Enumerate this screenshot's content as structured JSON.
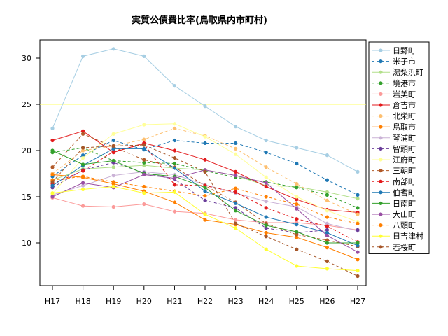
{
  "chart_data": {
    "type": "line",
    "title": "実質公債費比率(鳥取県内市町村)",
    "xlabel": "",
    "ylabel": "",
    "categories": [
      "H17",
      "H18",
      "H19",
      "H20",
      "H21",
      "H22",
      "H23",
      "H24",
      "H25",
      "H26",
      "H27"
    ],
    "ylim": [
      8.0,
      32.0
    ],
    "yticks": [
      10,
      15,
      20,
      25,
      30
    ],
    "reference_line": {
      "value": 25,
      "color": "#ffff66"
    },
    "legend_position": "right",
    "series": [
      {
        "name": "日野町",
        "color": "#a6cee3",
        "dash": false,
        "values": [
          22.4,
          30.2,
          31.0,
          30.2,
          27.0,
          24.8,
          22.6,
          21.1,
          20.3,
          19.5,
          17.7
        ]
      },
      {
        "name": "米子市",
        "color": "#1f78b4",
        "dash": true,
        "values": [
          17.2,
          19.5,
          21.1,
          20.1,
          21.1,
          20.8,
          20.8,
          19.8,
          18.6,
          16.8,
          15.2
        ]
      },
      {
        "name": "湯梨浜町",
        "color": "#b2df8a",
        "dash": false,
        "values": [
          16.8,
          18.0,
          18.2,
          18.4,
          18.1,
          17.9,
          17.3,
          16.2,
          16.1,
          15.5,
          14.8
        ]
      },
      {
        "name": "境港市",
        "color": "#33a02c",
        "dash": true,
        "values": [
          19.8,
          20.3,
          18.9,
          18.7,
          18.6,
          17.8,
          17.1,
          16.6,
          16.0,
          15.2,
          13.8
        ]
      },
      {
        "name": "岩美町",
        "color": "#fb9a99",
        "dash": false,
        "values": [
          14.9,
          14.0,
          13.9,
          14.2,
          13.4,
          13.2,
          12.5,
          12.2,
          12.2,
          11.9,
          11.4
        ]
      },
      {
        "name": "倉吉市",
        "color": "#e31a1c",
        "dash": false,
        "values": [
          21.1,
          22.1,
          19.8,
          20.8,
          20.0,
          19.0,
          17.7,
          16.1,
          14.7,
          13.6,
          13.3
        ]
      },
      {
        "name": "北栄町",
        "color": "#fdbf6f",
        "dash": true,
        "values": [
          17.5,
          20.0,
          20.5,
          21.2,
          22.4,
          21.6,
          20.2,
          18.2,
          16.4,
          14.6,
          13.1
        ]
      },
      {
        "name": "鳥取市",
        "color": "#ff7f00",
        "dash": false,
        "values": [
          17.4,
          17.1,
          16.4,
          15.6,
          14.4,
          12.5,
          12.0,
          11.1,
          10.6,
          9.5,
          8.2
        ]
      },
      {
        "name": "琴浦町",
        "color": "#cab2d6",
        "dash": false,
        "values": [
          15.2,
          16.2,
          17.3,
          17.7,
          17.4,
          16.3,
          15.4,
          14.5,
          13.9,
          12.1,
          11.3
        ]
      },
      {
        "name": "智頭町",
        "color": "#6a3d9a",
        "dash": true,
        "values": [
          16.0,
          17.9,
          18.7,
          17.6,
          16.9,
          14.6,
          13.8,
          11.6,
          11.1,
          11.4,
          11.4
        ]
      },
      {
        "name": "江府町",
        "color": "#ffff99",
        "dash": false,
        "values": [
          15.3,
          19.2,
          21.8,
          22.8,
          22.9,
          21.5,
          19.6,
          17.1,
          15.0,
          13.5,
          12.3
        ]
      },
      {
        "name": "三朝町",
        "color": "#b15928",
        "dash": true,
        "values": [
          18.2,
          21.8,
          20.4,
          19.0,
          18.2,
          16.2,
          14.4,
          12.1,
          10.9,
          10.3,
          9.6
        ]
      },
      {
        "name": "南部町",
        "color": "#e31a1c",
        "dash": true,
        "values": [
          16.4,
          17.8,
          19.9,
          20.7,
          16.3,
          16.2,
          15.5,
          13.8,
          12.6,
          11.8,
          10.1
        ]
      },
      {
        "name": "伯耆町",
        "color": "#1f78b4",
        "dash": false,
        "values": [
          16.2,
          18.4,
          20.2,
          20.2,
          18.1,
          15.6,
          14.3,
          12.8,
          12.0,
          11.1,
          9.7
        ]
      },
      {
        "name": "日南町",
        "color": "#33a02c",
        "dash": false,
        "values": [
          20.0,
          18.5,
          18.9,
          17.5,
          17.2,
          16.0,
          13.5,
          11.9,
          11.2,
          10.0,
          10.0
        ]
      },
      {
        "name": "大山町",
        "color": "#984ea3",
        "dash": false,
        "values": [
          15.0,
          16.5,
          16.0,
          17.4,
          17.0,
          17.9,
          17.3,
          16.5,
          13.7,
          10.8,
          9.0
        ]
      },
      {
        "name": "八頭町",
        "color": "#ff7f00",
        "dash": true,
        "values": [
          16.8,
          17.2,
          16.6,
          16.1,
          15.6,
          15.1,
          15.9,
          15.0,
          14.2,
          12.8,
          12.1
        ]
      },
      {
        "name": "日吉津村",
        "color": "#ffff33",
        "dash": false,
        "values": [
          15.4,
          15.8,
          16.1,
          15.4,
          15.5,
          13.1,
          11.6,
          9.3,
          7.5,
          7.2,
          7.0
        ]
      },
      {
        "name": "若桜町",
        "color": "#a65628",
        "dash": true,
        "values": [
          16.6,
          20.3,
          20.5,
          20.6,
          19.2,
          17.7,
          12.1,
          10.7,
          9.3,
          8.0,
          6.4
        ]
      }
    ]
  }
}
